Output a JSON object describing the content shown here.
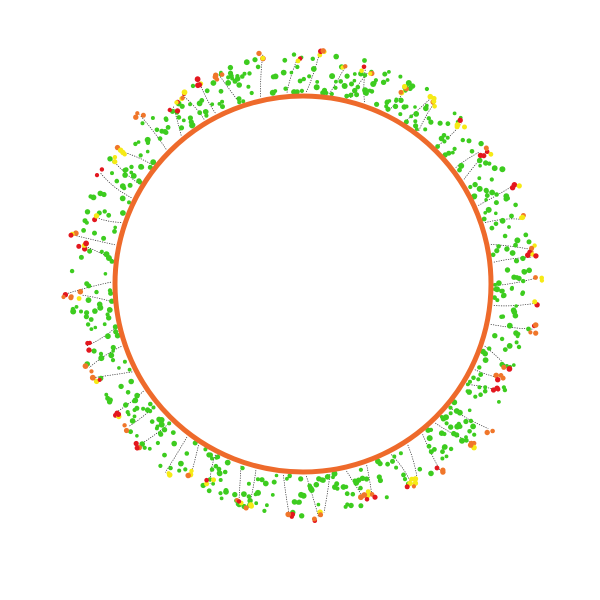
{
  "scene": {
    "type": "circular-garden",
    "cluster_count": 56,
    "leaf_count": 560,
    "colors": {
      "background": "#ffffff",
      "ring": "#ee6a2b",
      "leaf": "#3dcc1f",
      "stem": "#2a2a2a",
      "flower_red": "#e3171f",
      "flower_orange": "#f0762a",
      "flower_yellow": "#f6ea15"
    }
  }
}
